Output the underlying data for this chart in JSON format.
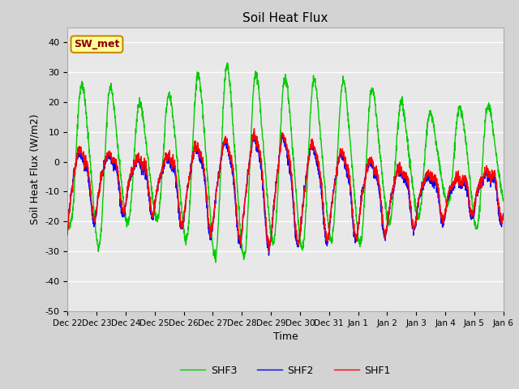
{
  "title": "Soil Heat Flux",
  "xlabel": "Time",
  "ylabel": "Soil Heat Flux (W/m2)",
  "ylim": [
    -50,
    45
  ],
  "yticks": [
    -50,
    -40,
    -30,
    -20,
    -10,
    0,
    10,
    20,
    30,
    40
  ],
  "bg_color": "#d3d3d3",
  "plot_bg_color": "#e8e8e8",
  "color_SHF1": "#ff0000",
  "color_SHF2": "#0000ff",
  "color_SHF3": "#00cc00",
  "annotation_text": "SW_met",
  "annotation_facecolor": "#ffff99",
  "annotation_edgecolor": "#cc8800",
  "annotation_textcolor": "#880000",
  "tick_labels": [
    "Dec 22",
    "Dec 23",
    "Dec 24",
    "Dec 25",
    "Dec 26",
    "Dec 27",
    "Dec 28",
    "Dec 29",
    "Dec 30",
    "Dec 31",
    "Jan 1",
    "Jan 2",
    "Jan 3",
    "Jan 4",
    "Jan 5",
    "Jan 6"
  ],
  "linewidth": 1.0
}
